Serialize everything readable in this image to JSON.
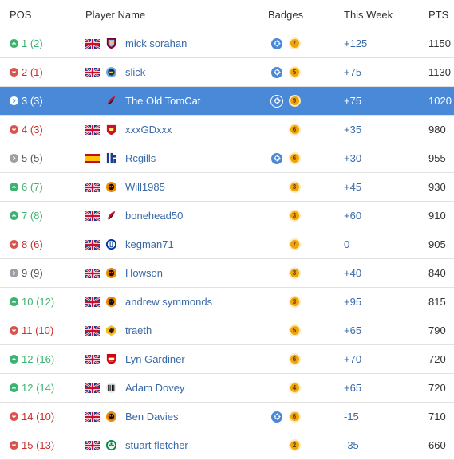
{
  "header": {
    "pos": "POS",
    "player": "Player Name",
    "badges": "Badges",
    "week": "This Week",
    "pts": "PTS"
  },
  "rows": [
    {
      "trend": "up",
      "pos": "1 (2)",
      "flag": "uk",
      "crest": "villa",
      "name": "mick sorahan",
      "badge_blue": true,
      "badge_gold": "7",
      "week": "+125",
      "pts": "1150",
      "selected": false
    },
    {
      "trend": "down",
      "pos": "2 (1)",
      "flag": "uk",
      "crest": "city",
      "name": "slick",
      "badge_blue": true,
      "badge_gold": "5",
      "week": "+75",
      "pts": "1130",
      "selected": false
    },
    {
      "trend": "selected",
      "pos": "3 (3)",
      "flag": "none",
      "crest": "cherries",
      "name": "The Old TomCat",
      "badge_blue": true,
      "badge_gold": "9",
      "week": "+75",
      "pts": "1020",
      "selected": true
    },
    {
      "trend": "down",
      "pos": "4 (3)",
      "flag": "uk",
      "crest": "liverpool",
      "name": "xxxGDxxx",
      "badge_blue": false,
      "badge_gold": "6",
      "week": "+35",
      "pts": "980",
      "selected": false
    },
    {
      "trend": "same",
      "pos": "5 (5)",
      "flag": "es",
      "crest": "gills",
      "name": "Rcgills",
      "badge_blue": true,
      "badge_gold": "6",
      "week": "+30",
      "pts": "955",
      "selected": false
    },
    {
      "trend": "up",
      "pos": "6 (7)",
      "flag": "uk",
      "crest": "hull",
      "name": "Will1985",
      "badge_blue": false,
      "badge_gold": "3",
      "week": "+45",
      "pts": "930",
      "selected": false
    },
    {
      "trend": "up",
      "pos": "7 (8)",
      "flag": "uk",
      "crest": "cherries",
      "name": "bonehead50",
      "badge_blue": false,
      "badge_gold": "3",
      "week": "+60",
      "pts": "910",
      "selected": false
    },
    {
      "trend": "down",
      "pos": "8 (6)",
      "flag": "uk",
      "crest": "everton",
      "name": "kegman71",
      "badge_blue": false,
      "badge_gold": "7",
      "week": "0",
      "pts": "905",
      "selected": false
    },
    {
      "trend": "same",
      "pos": "9 (9)",
      "flag": "uk",
      "crest": "hull",
      "name": "Howson",
      "badge_blue": false,
      "badge_gold": "3",
      "week": "+40",
      "pts": "840",
      "selected": false
    },
    {
      "trend": "up",
      "pos": "10 (12)",
      "flag": "uk",
      "crest": "hull",
      "name": "andrew symmonds",
      "badge_blue": false,
      "badge_gold": "3",
      "week": "+95",
      "pts": "815",
      "selected": false
    },
    {
      "trend": "down",
      "pos": "11 (10)",
      "flag": "uk",
      "crest": "wolves",
      "name": "traeth",
      "badge_blue": false,
      "badge_gold": "5",
      "week": "+65",
      "pts": "790",
      "selected": false
    },
    {
      "trend": "up",
      "pos": "12 (16)",
      "flag": "uk",
      "crest": "arsenal",
      "name": "Lyn Gardiner",
      "badge_blue": false,
      "badge_gold": "6",
      "week": "+70",
      "pts": "720",
      "selected": false
    },
    {
      "trend": "up",
      "pos": "12 (14)",
      "flag": "uk",
      "crest": "newcastle",
      "name": "Adam Dovey",
      "badge_blue": false,
      "badge_gold": "4",
      "week": "+65",
      "pts": "720",
      "selected": false
    },
    {
      "trend": "down",
      "pos": "14 (10)",
      "flag": "uk",
      "crest": "hull",
      "name": "Ben Davies",
      "badge_blue": true,
      "badge_gold": "6",
      "week": "-15",
      "pts": "710",
      "selected": false
    },
    {
      "trend": "down",
      "pos": "15 (13)",
      "flag": "uk",
      "crest": "celtic",
      "name": "stuart fletcher",
      "badge_blue": false,
      "badge_gold": "2",
      "week": "-35",
      "pts": "660",
      "selected": false
    }
  ],
  "colors": {
    "selected_row": "#4a89d8",
    "up": "#3cb371",
    "down": "#c9302c",
    "link": "#3a6aa8",
    "badge_gold": "#f0a30a"
  }
}
